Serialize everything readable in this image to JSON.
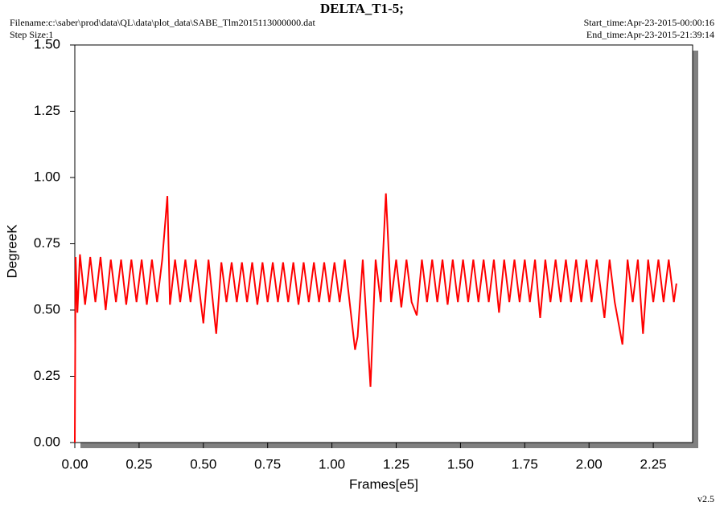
{
  "chart_data": {
    "type": "line",
    "title": "DELTA_T1-5;",
    "filename": "Filename:c:\\saber\\prod\\data\\QL\\data\\plot_data\\SABE_Tlm2015113000000.dat",
    "step_size": "Step Size:1",
    "start_time": "Start_time:Apr-23-2015-00:00:16",
    "end_time": "End_time:Apr-23-2015-21:39:14",
    "version": "v2.5",
    "x_label": "Frames[e5]",
    "y_label": "DegreeK",
    "xlim": [
      0,
      2.403
    ],
    "ylim": [
      0,
      1.5
    ],
    "xticks": [
      {
        "value": 0,
        "label": "0.00"
      },
      {
        "value": 0.25,
        "label": "0.25"
      },
      {
        "value": 0.5,
        "label": "0.50"
      },
      {
        "value": 0.75,
        "label": "0.75"
      },
      {
        "value": 1,
        "label": "1.00"
      },
      {
        "value": 1.25,
        "label": "1.25"
      },
      {
        "value": 1.5,
        "label": "1.50"
      },
      {
        "value": 1.75,
        "label": "1.75"
      },
      {
        "value": 2,
        "label": "2.00"
      },
      {
        "value": 2.25,
        "label": "2.25"
      }
    ],
    "yticks": [
      {
        "value": 0,
        "label": "0.00"
      },
      {
        "value": 0.25,
        "label": "0.25"
      },
      {
        "value": 0.5,
        "label": "0.50"
      },
      {
        "value": 0.75,
        "label": "0.75"
      },
      {
        "value": 1,
        "label": "1.00"
      },
      {
        "value": 1.25,
        "label": "1.25"
      },
      {
        "value": 1.5,
        "label": "1.50"
      }
    ],
    "x": [
      0,
      0.003,
      0.01,
      0.02,
      0.04,
      0.06,
      0.08,
      0.1,
      0.12,
      0.14,
      0.16,
      0.18,
      0.2,
      0.22,
      0.24,
      0.26,
      0.28,
      0.3,
      0.32,
      0.34,
      0.36,
      0.37,
      0.39,
      0.41,
      0.43,
      0.45,
      0.47,
      0.5,
      0.52,
      0.55,
      0.57,
      0.59,
      0.61,
      0.63,
      0.65,
      0.67,
      0.69,
      0.71,
      0.73,
      0.75,
      0.77,
      0.79,
      0.81,
      0.83,
      0.85,
      0.87,
      0.89,
      0.91,
      0.93,
      0.95,
      0.97,
      0.99,
      1.01,
      1.03,
      1.05,
      1.07,
      1.09,
      1.1,
      1.12,
      1.15,
      1.17,
      1.19,
      1.21,
      1.23,
      1.25,
      1.27,
      1.29,
      1.31,
      1.33,
      1.35,
      1.37,
      1.39,
      1.41,
      1.43,
      1.45,
      1.47,
      1.49,
      1.51,
      1.53,
      1.55,
      1.57,
      1.59,
      1.61,
      1.63,
      1.65,
      1.67,
      1.69,
      1.71,
      1.73,
      1.75,
      1.77,
      1.79,
      1.81,
      1.83,
      1.85,
      1.87,
      1.89,
      1.91,
      1.93,
      1.95,
      1.97,
      1.99,
      2.01,
      2.03,
      2.06,
      2.08,
      2.1,
      2.13,
      2.15,
      2.17,
      2.19,
      2.21,
      2.23,
      2.25,
      2.27,
      2.29,
      2.31,
      2.33,
      2.34
    ],
    "series": [
      {
        "color": "#ff0000",
        "values": [
          0,
          0.7,
          0.49,
          0.71,
          0.52,
          0.7,
          0.53,
          0.7,
          0.5,
          0.69,
          0.53,
          0.69,
          0.52,
          0.69,
          0.53,
          0.69,
          0.52,
          0.69,
          0.53,
          0.69,
          0.93,
          0.52,
          0.69,
          0.53,
          0.69,
          0.53,
          0.69,
          0.45,
          0.69,
          0.41,
          0.68,
          0.53,
          0.68,
          0.53,
          0.68,
          0.53,
          0.68,
          0.52,
          0.68,
          0.53,
          0.68,
          0.53,
          0.68,
          0.53,
          0.68,
          0.52,
          0.68,
          0.53,
          0.68,
          0.53,
          0.68,
          0.53,
          0.68,
          0.53,
          0.69,
          0.52,
          0.35,
          0.4,
          0.69,
          0.21,
          0.69,
          0.53,
          0.94,
          0.53,
          0.69,
          0.51,
          0.69,
          0.53,
          0.48,
          0.69,
          0.53,
          0.69,
          0.53,
          0.69,
          0.52,
          0.69,
          0.53,
          0.69,
          0.53,
          0.69,
          0.53,
          0.69,
          0.53,
          0.69,
          0.49,
          0.69,
          0.53,
          0.69,
          0.53,
          0.69,
          0.53,
          0.69,
          0.47,
          0.69,
          0.53,
          0.69,
          0.53,
          0.69,
          0.53,
          0.69,
          0.53,
          0.69,
          0.53,
          0.69,
          0.47,
          0.69,
          0.53,
          0.37,
          0.69,
          0.53,
          0.69,
          0.41,
          0.69,
          0.53,
          0.69,
          0.53,
          0.69,
          0.53,
          0.6
        ]
      }
    ]
  }
}
